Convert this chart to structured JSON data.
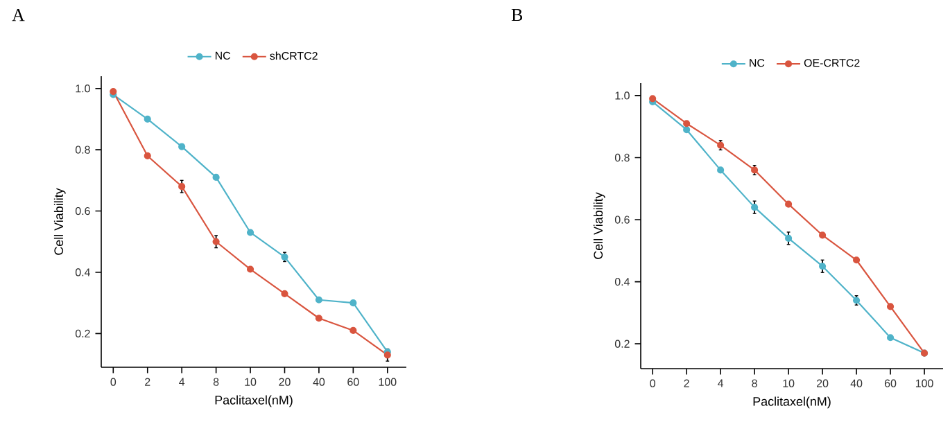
{
  "chart_data": [
    {
      "type": "line",
      "title": "A",
      "xlabel": "Paclitaxel(nM)",
      "ylabel": "Cell Viability",
      "categories": [
        "0",
        "2",
        "4",
        "8",
        "10",
        "20",
        "40",
        "60",
        "100"
      ],
      "series": [
        {
          "name": "NC",
          "color": "#4fb3c9",
          "values": [
            0.98,
            0.9,
            0.81,
            0.71,
            0.53,
            0.45,
            0.31,
            0.3,
            0.14
          ],
          "errors": [
            null,
            null,
            null,
            null,
            null,
            0.015,
            null,
            null,
            null
          ]
        },
        {
          "name": "shCRTC2",
          "color": "#d9553f",
          "values": [
            0.99,
            0.78,
            0.68,
            0.5,
            0.41,
            0.33,
            0.25,
            0.21,
            0.13
          ],
          "errors": [
            null,
            null,
            0.02,
            0.02,
            null,
            null,
            null,
            null,
            0.02
          ]
        }
      ],
      "ylim": [
        0.09,
        1.04
      ],
      "yticks": [
        0.2,
        0.4,
        0.6,
        0.8,
        {
          "value": 1.0,
          "label": "1.0"
        }
      ],
      "legend": "top",
      "marker": "circle",
      "line_style": "solid"
    },
    {
      "type": "line",
      "title": "B",
      "xlabel": "Paclitaxel(nM)",
      "ylabel": "Cell Viability",
      "categories": [
        "0",
        "2",
        "4",
        "8",
        "10",
        "20",
        "40",
        "60",
        "100"
      ],
      "series": [
        {
          "name": "NC",
          "color": "#4fb3c9",
          "values": [
            0.98,
            0.89,
            0.76,
            0.64,
            0.54,
            0.45,
            0.34,
            0.22,
            0.17
          ],
          "errors": [
            null,
            null,
            null,
            0.02,
            0.02,
            0.02,
            0.015,
            null,
            null
          ]
        },
        {
          "name": "OE-CRTC2",
          "color": "#d9553f",
          "values": [
            0.99,
            0.91,
            0.84,
            0.76,
            0.65,
            0.55,
            0.47,
            0.32,
            0.17
          ],
          "errors": [
            null,
            null,
            0.015,
            0.015,
            null,
            null,
            null,
            null,
            null
          ]
        }
      ],
      "ylim": [
        0.12,
        1.04
      ],
      "yticks": [
        0.2,
        0.4,
        0.6,
        0.8,
        {
          "value": 1.0,
          "label": "1.0"
        }
      ],
      "legend": "top",
      "marker": "circle",
      "line_style": "solid"
    }
  ]
}
